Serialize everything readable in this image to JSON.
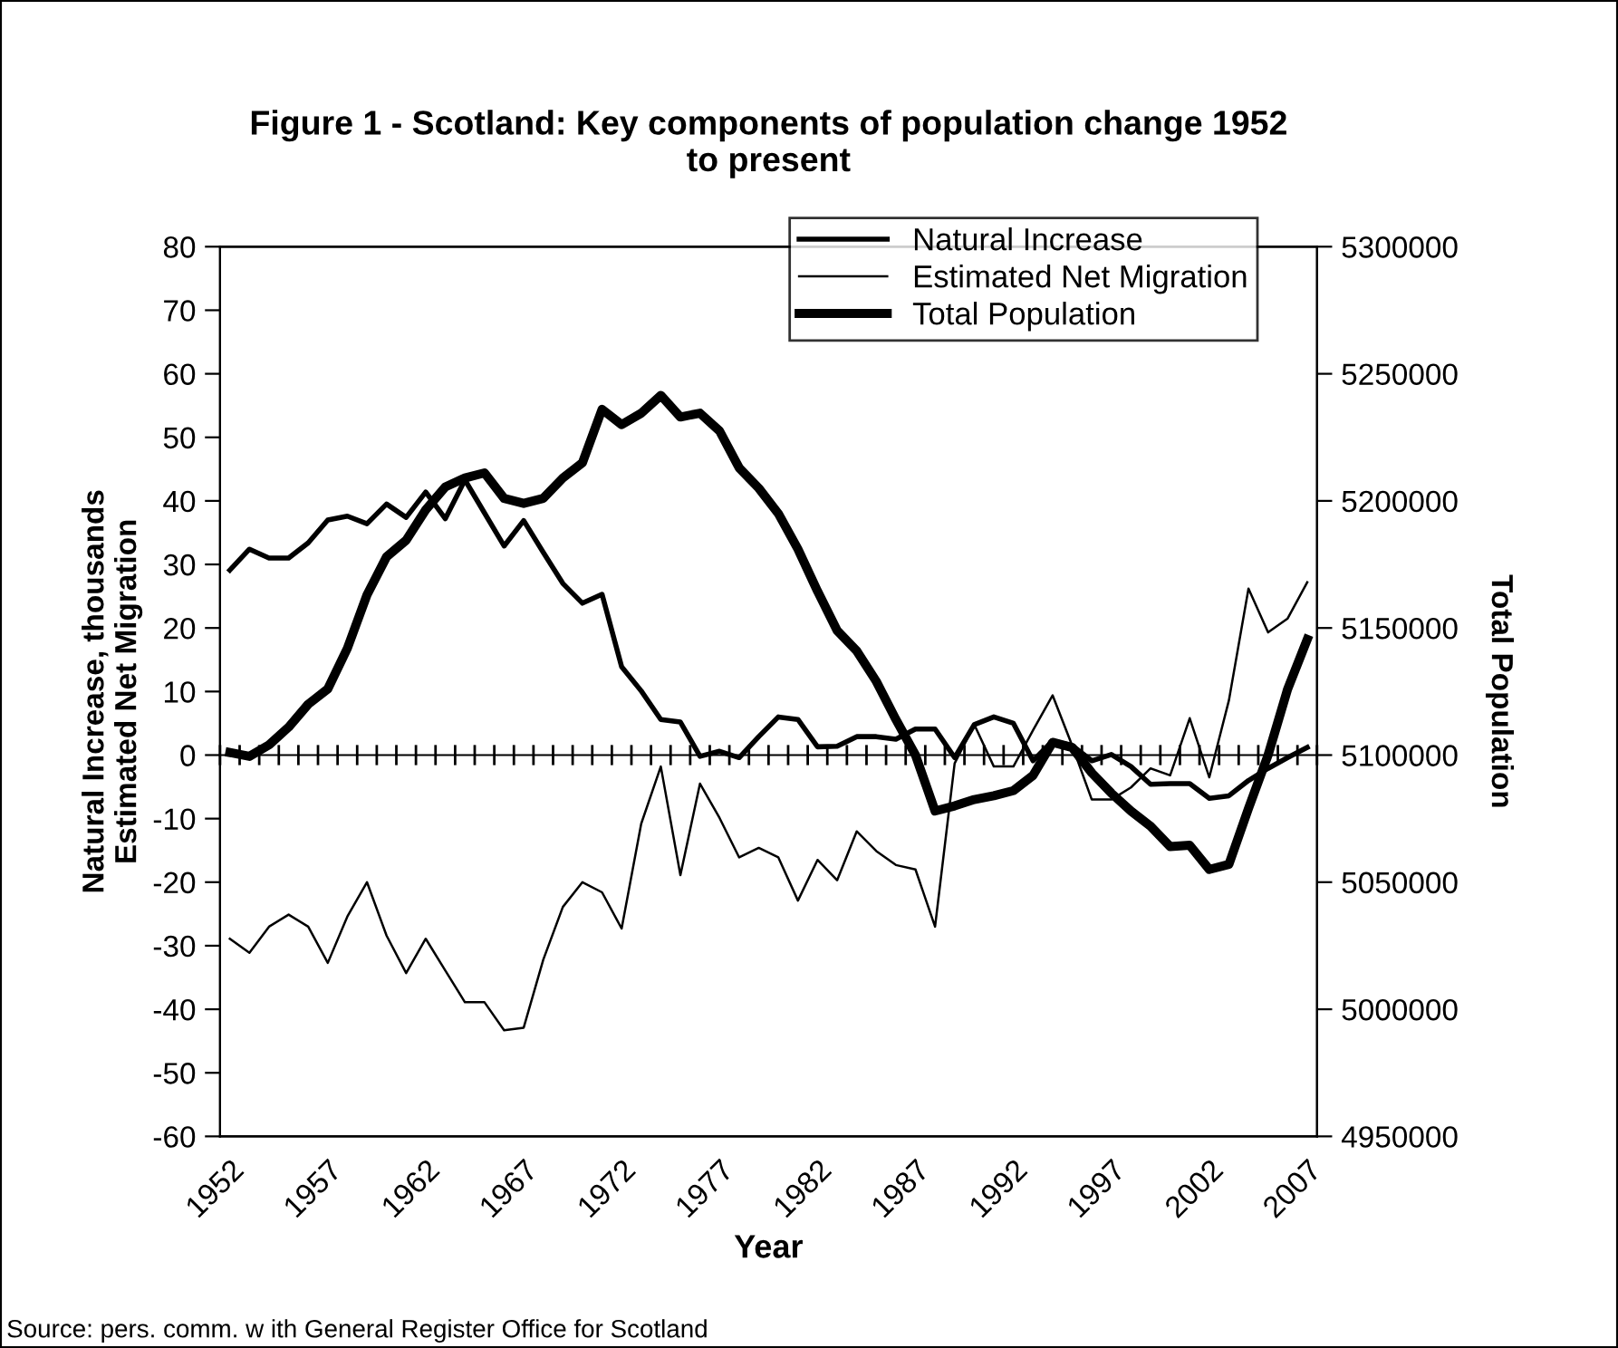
{
  "chart_data": {
    "type": "line",
    "title": "Figure 1 - Scotland: Key components of population change 1952\nto present",
    "xlabel": "Year",
    "ylabel": "Natural Increase, thousands\nEstimated Net Migration",
    "y2label": "Total Population",
    "categories": [
      "1952",
      null,
      null,
      null,
      null,
      "1957",
      null,
      null,
      null,
      null,
      "1962",
      null,
      null,
      null,
      null,
      "1967",
      null,
      null,
      null,
      null,
      "1972",
      null,
      null,
      null,
      null,
      "1977",
      null,
      null,
      null,
      null,
      "1982",
      null,
      null,
      null,
      null,
      "1987",
      null,
      null,
      null,
      null,
      "1992",
      null,
      null,
      null,
      null,
      "1997",
      null,
      null,
      null,
      null,
      "2002",
      null,
      null,
      null,
      null,
      "2007"
    ],
    "series": [
      {
        "name": "Natural Increase",
        "color": "#000000",
        "values": [
          29.1,
          32.4,
          31,
          31,
          33.4,
          37,
          37.6,
          36.4,
          39.5,
          37.4,
          41.4,
          37.2,
          43.3,
          38.1,
          32.9,
          36.9,
          31.9,
          27,
          23.9,
          25.3,
          13.9,
          10.1,
          5.6,
          5.2,
          -0.2,
          0.6,
          -0.4,
          2.9,
          6,
          5.6,
          1.3,
          1.4,
          2.9,
          2.9,
          2.5,
          4.1,
          4.1,
          -0.4,
          4.8,
          6,
          5,
          -0.9,
          2.2,
          1.5,
          -0.9,
          0.1,
          -1.8,
          -4.6,
          -4.5,
          -4.5,
          -6.8,
          -6.4,
          -4,
          -2.1,
          -0.4,
          1.2
        ]
      },
      {
        "name": "Estimated Net Migration",
        "color": "#000000",
        "values": [
          -28.9,
          -31.1,
          -27,
          -25.1,
          -27,
          -32.7,
          -25.4,
          -20,
          -28.4,
          -34.3,
          -28.9,
          -33.9,
          -38.9,
          -38.9,
          -43.3,
          -42.9,
          -32.2,
          -23.9,
          -20,
          -21.6,
          -27.3,
          -10.8,
          -1.8,
          -18.9,
          -4.5,
          -9.9,
          -16.1,
          -14.6,
          -16.1,
          -22.9,
          -16.5,
          -19.7,
          -12,
          -15.1,
          -17.3,
          -18,
          -27,
          -1.3,
          4.8,
          -1.8,
          -1.8,
          3.9,
          9.4,
          1.5,
          -7,
          -7,
          -5.1,
          -2.1,
          -3.2,
          5.8,
          -3.5,
          8.6,
          26.2,
          19.3,
          21.5,
          27.2
        ]
      },
      {
        "name": "Total Population",
        "color": "#000000",
        "axis": "y2",
        "values": [
          5101000,
          5099500,
          5104000,
          5111000,
          5120000,
          5126000,
          5142000,
          5163000,
          5178000,
          5184500,
          5196500,
          5205500,
          5209000,
          5211000,
          5201000,
          5199000,
          5201000,
          5209000,
          5215000,
          5236000,
          5230000,
          5234500,
          5241500,
          5233000,
          5234500,
          5227500,
          5213000,
          5205000,
          5195000,
          5181000,
          5164500,
          5149000,
          5141000,
          5129000,
          5114000,
          5100000,
          5078000,
          5080000,
          5082500,
          5084000,
          5086000,
          5092000,
          5105000,
          5103000,
          5093000,
          5085000,
          5078000,
          5072000,
          5064000,
          5064500,
          5055000,
          5057000,
          5079000,
          5100000,
          5126000,
          5145500
        ]
      }
    ],
    "ylim": [
      -60,
      80
    ],
    "yticks": [
      -60,
      -50,
      -40,
      -30,
      -20,
      -10,
      0,
      10,
      20,
      30,
      40,
      50,
      60,
      70,
      80
    ],
    "y2lim": [
      4950000,
      5300000
    ],
    "y2ticks": [
      4950000,
      5000000,
      5050000,
      5100000,
      5150000,
      5200000,
      5250000,
      5300000
    ],
    "legend": "top right",
    "marker": "none",
    "line_style": "solid",
    "annotations": [
      "Source: pers. comm. w ith General Register Office for Scotland"
    ]
  }
}
